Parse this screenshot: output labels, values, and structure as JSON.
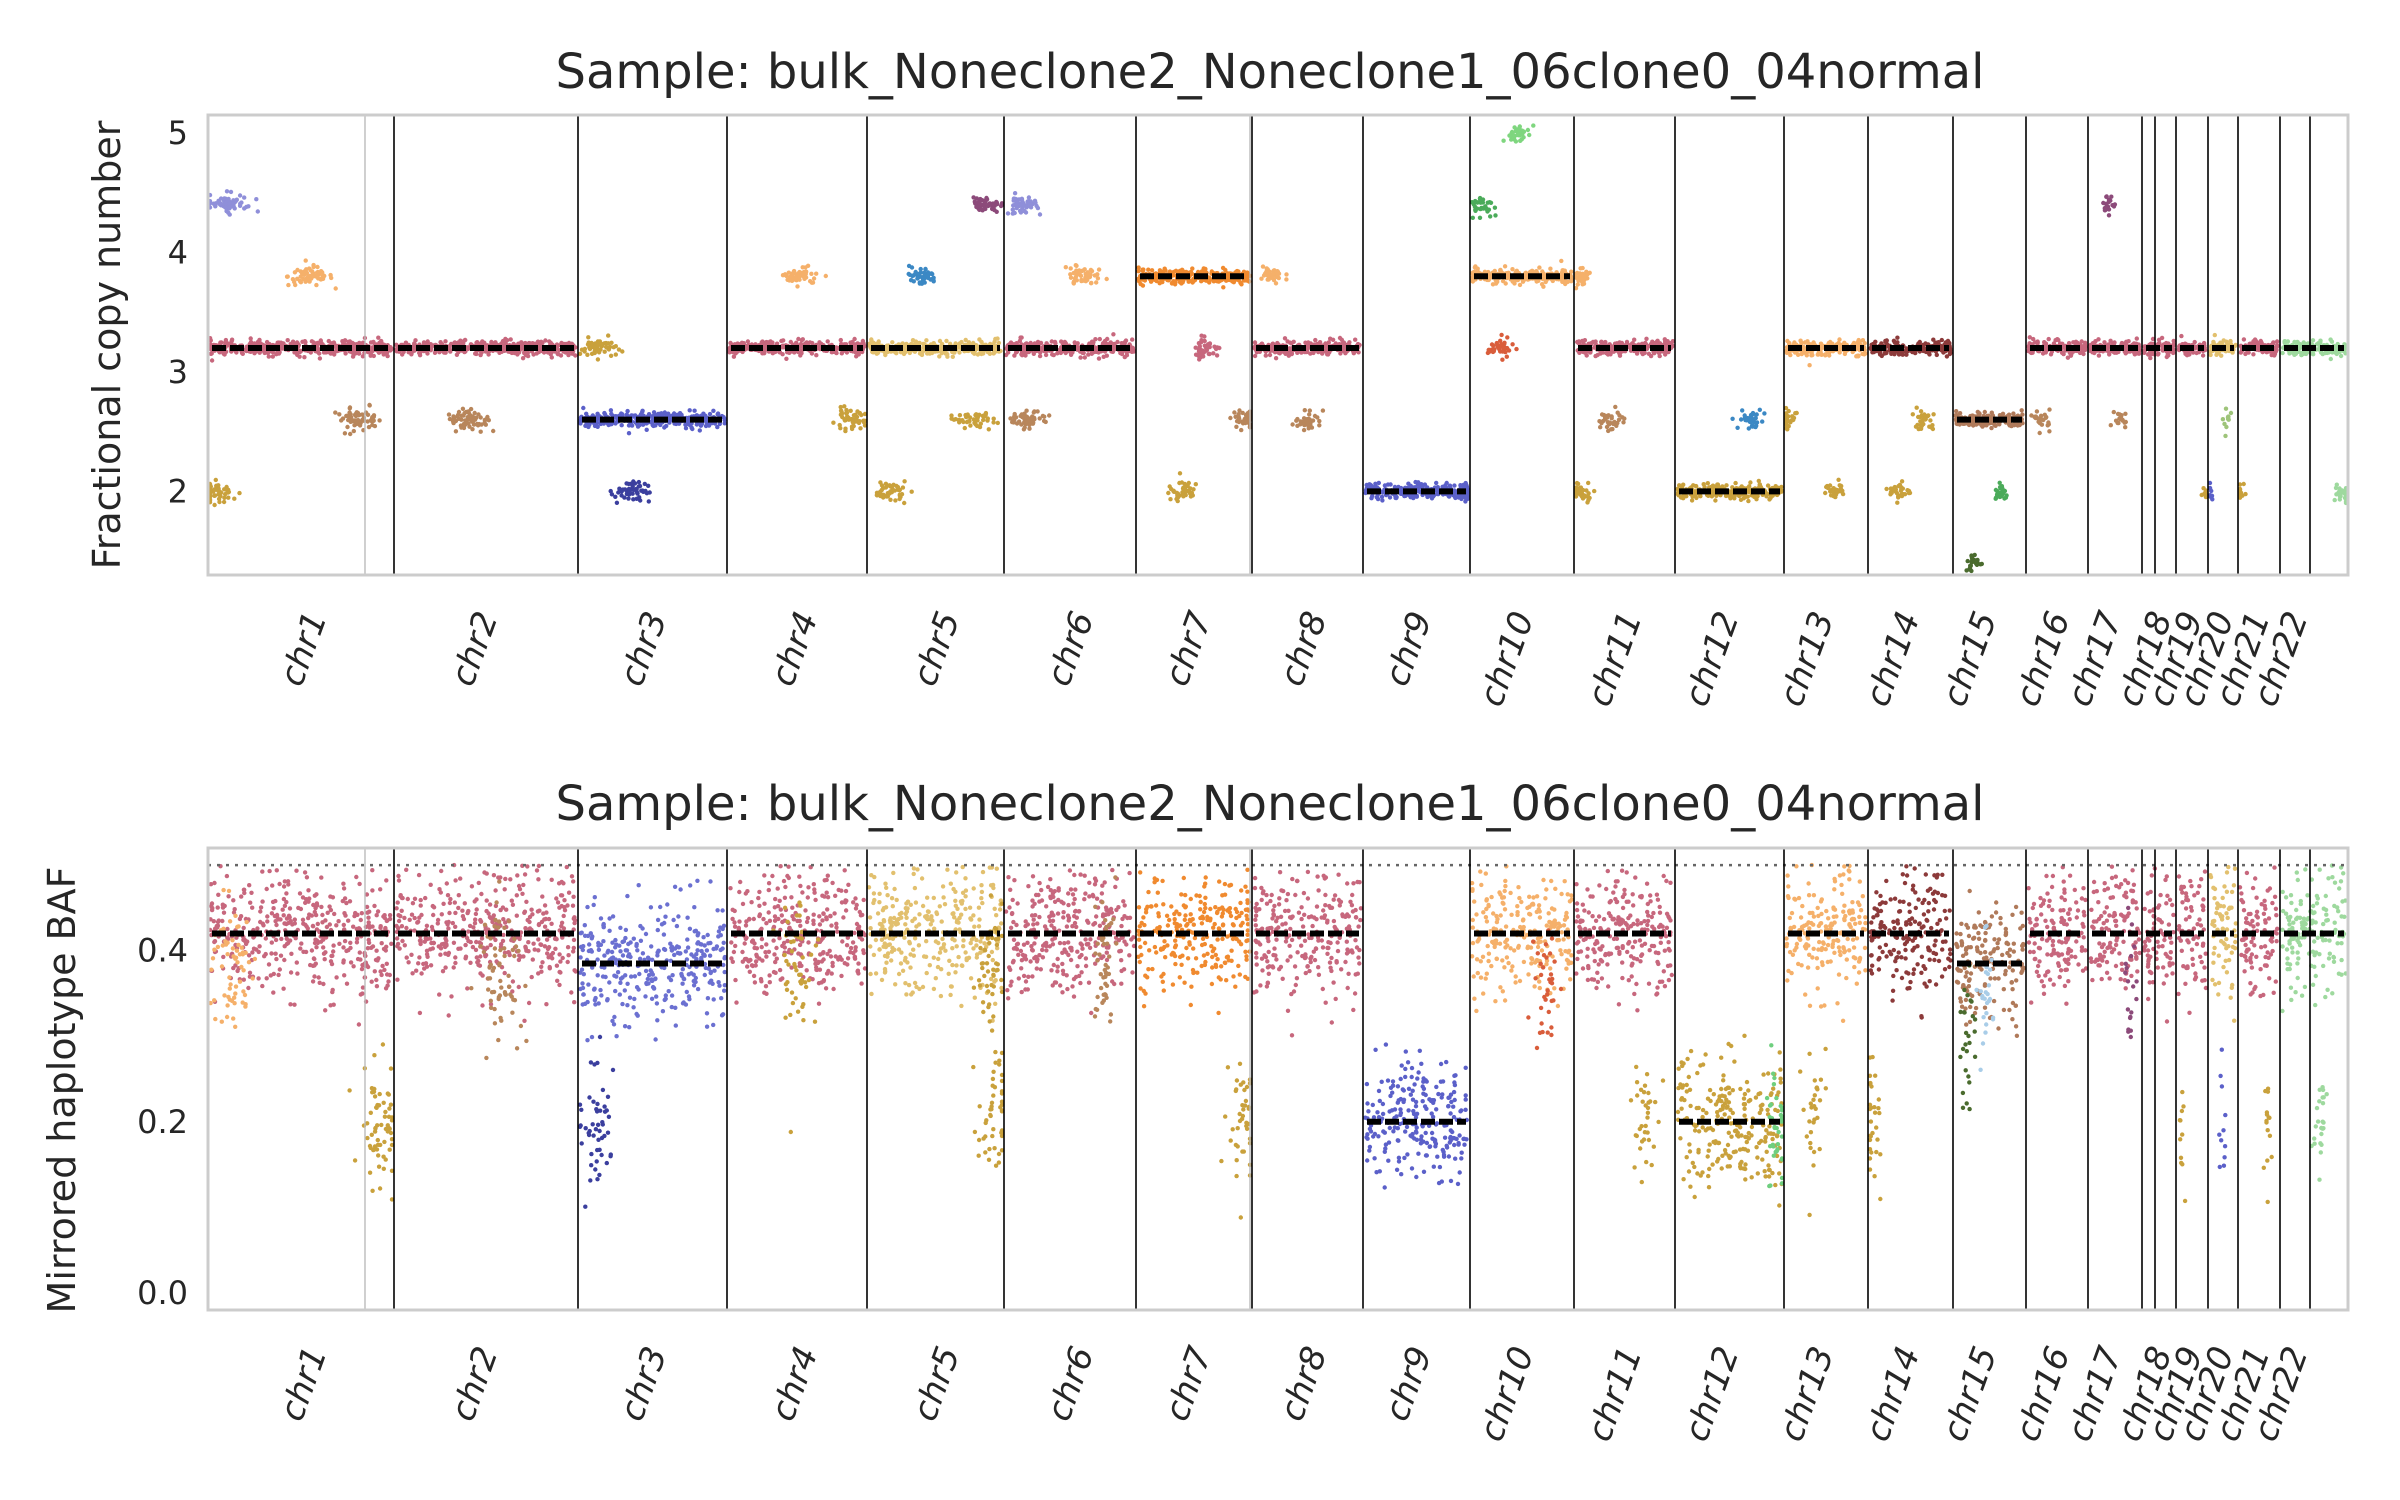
{
  "figure": {
    "background": "#ffffff",
    "frame_color": "#cccccc",
    "boundary_color": "#000000",
    "segment_color": "#000000",
    "panels": [
      {
        "id": "cn",
        "title": "Sample: bulk_Noneclone2_Noneclone1_06clone0_04normal",
        "ylabel": "Fractional copy number"
      },
      {
        "id": "baf",
        "title": "Sample: bulk_Noneclone2_Noneclone1_06clone0_04normal",
        "ylabel": "Mirrored haplotype BAF"
      }
    ]
  },
  "chart_data": [
    {
      "type": "scatter",
      "title": "Sample: bulk_Noneclone2_Noneclone1_06clone0_04normal",
      "xlabel": "",
      "ylabel": "Fractional copy number",
      "ylim": [
        1.3,
        5.15
      ],
      "yticks": [
        2,
        3,
        4,
        5
      ],
      "grid": false,
      "x_tick_labels": [
        "chr1",
        "chr2",
        "chr3",
        "chr4",
        "chr5",
        "chr6",
        "chr7",
        "chr8",
        "chr9",
        "chr10",
        "chr11",
        "chr12",
        "chr13",
        "chr14",
        "chr15",
        "chr16",
        "chr17",
        "chr18",
        "chr19",
        "chr20",
        "chr21",
        "chr22"
      ],
      "segments": [
        {
          "chr": "chr1",
          "main": 3.2,
          "color": "#c7677d",
          "extras": [
            {
              "v": 3.8,
              "c": "#f5b06a"
            },
            {
              "v": 2.6,
              "c": "#b8865b"
            },
            {
              "v": 2.0,
              "c": "#c9a13c"
            },
            {
              "v": 4.4,
              "c": "#8f8fd9"
            }
          ]
        },
        {
          "chr": "chr2",
          "main": 3.2,
          "color": "#c7677d",
          "extras": [
            {
              "v": 2.6,
              "c": "#b8865b"
            }
          ]
        },
        {
          "chr": "chr3",
          "main": 2.6,
          "color": "#5b60c9",
          "extras": [
            {
              "v": 3.2,
              "c": "#c9a13c"
            },
            {
              "v": 2.0,
              "c": "#3b3f9e"
            }
          ]
        },
        {
          "chr": "chr4",
          "main": 3.2,
          "color": "#c7677d",
          "extras": [
            {
              "v": 2.6,
              "c": "#c9a13c"
            },
            {
              "v": 3.8,
              "c": "#f5b06a"
            }
          ]
        },
        {
          "chr": "chr5",
          "main": 3.2,
          "color": "#e2c06e",
          "extras": [
            {
              "v": 4.4,
              "c": "#8c4a7a"
            },
            {
              "v": 3.8,
              "c": "#3b88c4"
            },
            {
              "v": 2.6,
              "c": "#c9a13c"
            },
            {
              "v": 2.0,
              "c": "#c9a13c"
            }
          ]
        },
        {
          "chr": "chr6",
          "main": 3.2,
          "color": "#c7677d",
          "extras": [
            {
              "v": 2.6,
              "c": "#b8865b"
            },
            {
              "v": 4.4,
              "c": "#8f8fd9"
            },
            {
              "v": 3.8,
              "c": "#f5b06a"
            }
          ]
        },
        {
          "chr": "chr7",
          "main": 3.8,
          "color": "#f08a2f",
          "extras": [
            {
              "v": 2.0,
              "c": "#c9a13c"
            },
            {
              "v": 3.2,
              "c": "#c7677d"
            },
            {
              "v": 2.6,
              "c": "#b8865b"
            }
          ]
        },
        {
          "chr": "chr8",
          "main": 3.2,
          "color": "#c7677d",
          "extras": [
            {
              "v": 3.8,
              "c": "#f5b06a"
            },
            {
              "v": 2.6,
              "c": "#b8865b"
            }
          ]
        },
        {
          "chr": "chr9",
          "main": 2.0,
          "color": "#5b60c9",
          "extras": []
        },
        {
          "chr": "chr10",
          "main": 3.8,
          "color": "#f5b06a",
          "extras": [
            {
              "v": 4.4,
              "c": "#4bab5a"
            },
            {
              "v": 5.0,
              "c": "#7fd67f"
            },
            {
              "v": 3.2,
              "c": "#d95d3b"
            }
          ]
        },
        {
          "chr": "chr11",
          "main": 3.2,
          "color": "#c7677d",
          "extras": [
            {
              "v": 3.8,
              "c": "#f5b06a"
            },
            {
              "v": 2.0,
              "c": "#c9a13c"
            },
            {
              "v": 2.6,
              "c": "#b8865b"
            }
          ]
        },
        {
          "chr": "chr12",
          "main": 2.0,
          "color": "#c9a13c",
          "extras": [
            {
              "v": 2.6,
              "c": "#3b88c4"
            }
          ]
        },
        {
          "chr": "chr13",
          "main": 3.2,
          "color": "#f5b06a",
          "extras": [
            {
              "v": 2.0,
              "c": "#c9a13c"
            },
            {
              "v": 2.6,
              "c": "#c9a13c"
            }
          ]
        },
        {
          "chr": "chr14",
          "main": 3.2,
          "color": "#8c3a3a",
          "extras": [
            {
              "v": 2.6,
              "c": "#c9a13c"
            },
            {
              "v": 2.0,
              "c": "#c9a13c"
            }
          ]
        },
        {
          "chr": "chr15",
          "main": 2.6,
          "color": "#b07a5a",
          "extras": [
            {
              "v": 1.4,
              "c": "#4a6b2e"
            },
            {
              "v": 2.0,
              "c": "#4bab5a"
            }
          ]
        },
        {
          "chr": "chr16",
          "main": 3.2,
          "color": "#c7677d",
          "extras": [
            {
              "v": 2.6,
              "c": "#b8865b"
            }
          ]
        },
        {
          "chr": "chr17",
          "main": 3.2,
          "color": "#c7677d",
          "extras": [
            {
              "v": 4.4,
              "c": "#8c4a7a"
            },
            {
              "v": 2.6,
              "c": "#b8865b"
            }
          ]
        },
        {
          "chr": "chr18",
          "main": 3.2,
          "color": "#c7677d",
          "extras": []
        },
        {
          "chr": "chr19",
          "main": 3.2,
          "color": "#c7677d",
          "extras": [
            {
              "v": 2.0,
              "c": "#c9a13c"
            }
          ]
        },
        {
          "chr": "chr20",
          "main": 3.2,
          "color": "#e2c06e",
          "extras": [
            {
              "v": 2.0,
              "c": "#5b60c9"
            },
            {
              "v": 2.6,
              "c": "#9ec47a"
            }
          ]
        },
        {
          "chr": "chr21",
          "main": 3.2,
          "color": "#c7677d",
          "extras": [
            {
              "v": 2.0,
              "c": "#c9a13c"
            }
          ]
        },
        {
          "chr": "chr22",
          "main": 3.2,
          "color": "#9ed99e",
          "extras": [
            {
              "v": 2.0,
              "c": "#9ed99e"
            }
          ]
        }
      ]
    },
    {
      "type": "scatter",
      "title": "Sample: bulk_Noneclone2_Noneclone1_06clone0_04normal",
      "xlabel": "",
      "ylabel": "Mirrored haplotype BAF",
      "ylim": [
        -0.02,
        0.52
      ],
      "yticks": [
        "0.0",
        "0.2",
        "0.4"
      ],
      "reference_line": 0.5,
      "grid": false,
      "x_tick_labels": [
        "chr1",
        "chr2",
        "chr3",
        "chr4",
        "chr5",
        "chr6",
        "chr7",
        "chr8",
        "chr9",
        "chr10",
        "chr11",
        "chr12",
        "chr13",
        "chr14",
        "chr15",
        "chr16",
        "chr17",
        "chr18",
        "chr19",
        "chr20",
        "chr21",
        "chr22"
      ],
      "segments": [
        {
          "chr": "chr1",
          "main": 0.42,
          "color": "#c7677d",
          "extras": [
            {
              "v": 0.2,
              "c": "#c9a13c"
            },
            {
              "v": 0.38,
              "c": "#f5b06a"
            }
          ]
        },
        {
          "chr": "chr2",
          "main": 0.42,
          "color": "#c7677d",
          "extras": [
            {
              "v": 0.385,
              "c": "#b8865b"
            }
          ]
        },
        {
          "chr": "chr3",
          "main": 0.385,
          "color": "#6b70d1",
          "extras": [
            {
              "v": 0.2,
              "c": "#3b3f9e"
            }
          ]
        },
        {
          "chr": "chr4",
          "main": 0.42,
          "color": "#c7677d",
          "extras": [
            {
              "v": 0.38,
              "c": "#c9a13c"
            }
          ]
        },
        {
          "chr": "chr5",
          "main": 0.42,
          "color": "#e2c06e",
          "extras": [
            {
              "v": 0.2,
              "c": "#c9a13c"
            },
            {
              "v": 0.385,
              "c": "#c9a13c"
            }
          ]
        },
        {
          "chr": "chr6",
          "main": 0.42,
          "color": "#c7677d",
          "extras": [
            {
              "v": 0.385,
              "c": "#b8865b"
            }
          ]
        },
        {
          "chr": "chr7",
          "main": 0.42,
          "color": "#f08a2f",
          "extras": [
            {
              "v": 0.2,
              "c": "#c9a13c"
            }
          ]
        },
        {
          "chr": "chr8",
          "main": 0.42,
          "color": "#c7677d",
          "extras": []
        },
        {
          "chr": "chr9",
          "main": 0.2,
          "color": "#5b60c9",
          "extras": []
        },
        {
          "chr": "chr10",
          "main": 0.42,
          "color": "#f5b06a",
          "extras": [
            {
              "v": 0.36,
              "c": "#d95d3b"
            }
          ]
        },
        {
          "chr": "chr11",
          "main": 0.42,
          "color": "#c7677d",
          "extras": [
            {
              "v": 0.2,
              "c": "#c9a13c"
            }
          ]
        },
        {
          "chr": "chr12",
          "main": 0.2,
          "color": "#c9a13c",
          "extras": [
            {
              "v": 0.2,
              "c": "#6fcf7f"
            }
          ]
        },
        {
          "chr": "chr13",
          "main": 0.42,
          "color": "#f5b06a",
          "extras": [
            {
              "v": 0.2,
              "c": "#c9a13c"
            }
          ]
        },
        {
          "chr": "chr14",
          "main": 0.42,
          "color": "#8c3a3a",
          "extras": [
            {
              "v": 0.2,
              "c": "#c9a13c"
            }
          ]
        },
        {
          "chr": "chr15",
          "main": 0.385,
          "color": "#b07a5a",
          "extras": [
            {
              "v": 0.3,
              "c": "#4a6b2e"
            },
            {
              "v": 0.36,
              "c": "#a9cde8"
            }
          ]
        },
        {
          "chr": "chr16",
          "main": 0.42,
          "color": "#c7677d",
          "extras": []
        },
        {
          "chr": "chr17",
          "main": 0.42,
          "color": "#c7677d",
          "extras": [
            {
              "v": 0.36,
              "c": "#8c4a7a"
            }
          ]
        },
        {
          "chr": "chr18",
          "main": 0.42,
          "color": "#c7677d",
          "extras": []
        },
        {
          "chr": "chr19",
          "main": 0.42,
          "color": "#c7677d",
          "extras": [
            {
              "v": 0.2,
              "c": "#c9a13c"
            }
          ]
        },
        {
          "chr": "chr20",
          "main": 0.42,
          "color": "#e2c06e",
          "extras": [
            {
              "v": 0.2,
              "c": "#5b60c9"
            }
          ]
        },
        {
          "chr": "chr21",
          "main": 0.42,
          "color": "#c7677d",
          "extras": [
            {
              "v": 0.2,
              "c": "#c9a13c"
            }
          ]
        },
        {
          "chr": "chr22",
          "main": 0.42,
          "color": "#9ed99e",
          "extras": [
            {
              "v": 0.2,
              "c": "#9ed99e"
            }
          ]
        }
      ]
    }
  ]
}
